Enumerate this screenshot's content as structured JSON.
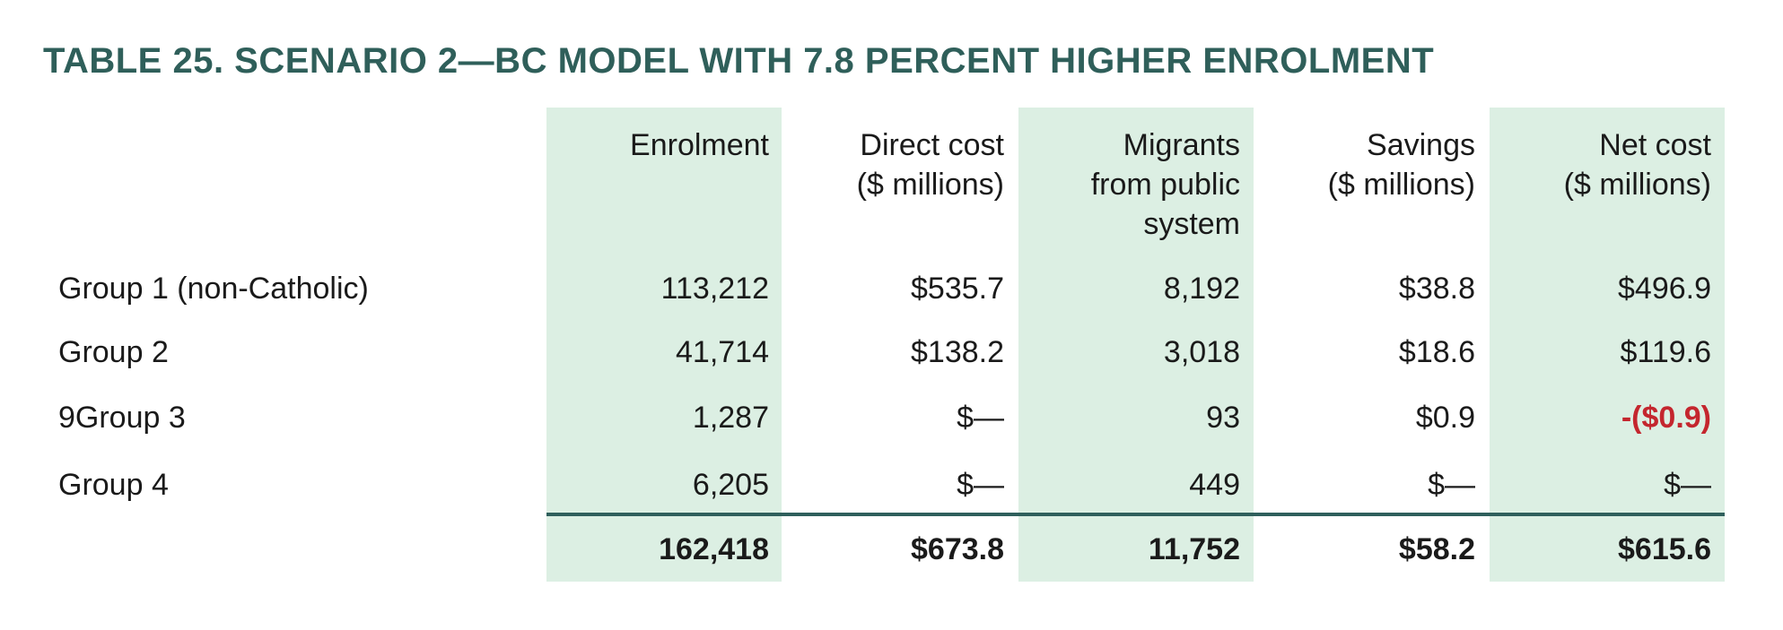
{
  "title": "TABLE 25. SCENARIO 2—BC MODEL WITH 7.8 PERCENT HIGHER ENROLMENT",
  "columns": [
    [
      "Enrolment"
    ],
    [
      "Direct cost",
      "($ millions)"
    ],
    [
      "Migrants",
      "from public",
      "system"
    ],
    [
      "Savings",
      "($ millions)"
    ],
    [
      "Net cost",
      "($ millions)"
    ]
  ],
  "rows": [
    {
      "label": "Group 1 (non-Catholic)",
      "values": [
        "113,212",
        "$535.7",
        "8,192",
        "$38.8",
        "$496.9"
      ]
    },
    {
      "label": "Group 2",
      "values": [
        "41,714",
        "$138.2",
        "3,018",
        "$18.6",
        "$119.6"
      ]
    },
    {
      "label": "9Group 3",
      "values": [
        "1,287",
        "$—",
        "93",
        "$0.9",
        "-($0.9)"
      ]
    },
    {
      "label": "Group 4",
      "values": [
        "6,205",
        "$—",
        "449",
        "$—",
        "$—"
      ]
    }
  ],
  "total": [
    "162,418",
    "$673.8",
    "11,752",
    "$58.2",
    "$615.6"
  ],
  "colors": {
    "title": "#2f5f5a",
    "band": "#dcefe3",
    "rule": "#2f5f5c",
    "negative": "#c4262e"
  }
}
